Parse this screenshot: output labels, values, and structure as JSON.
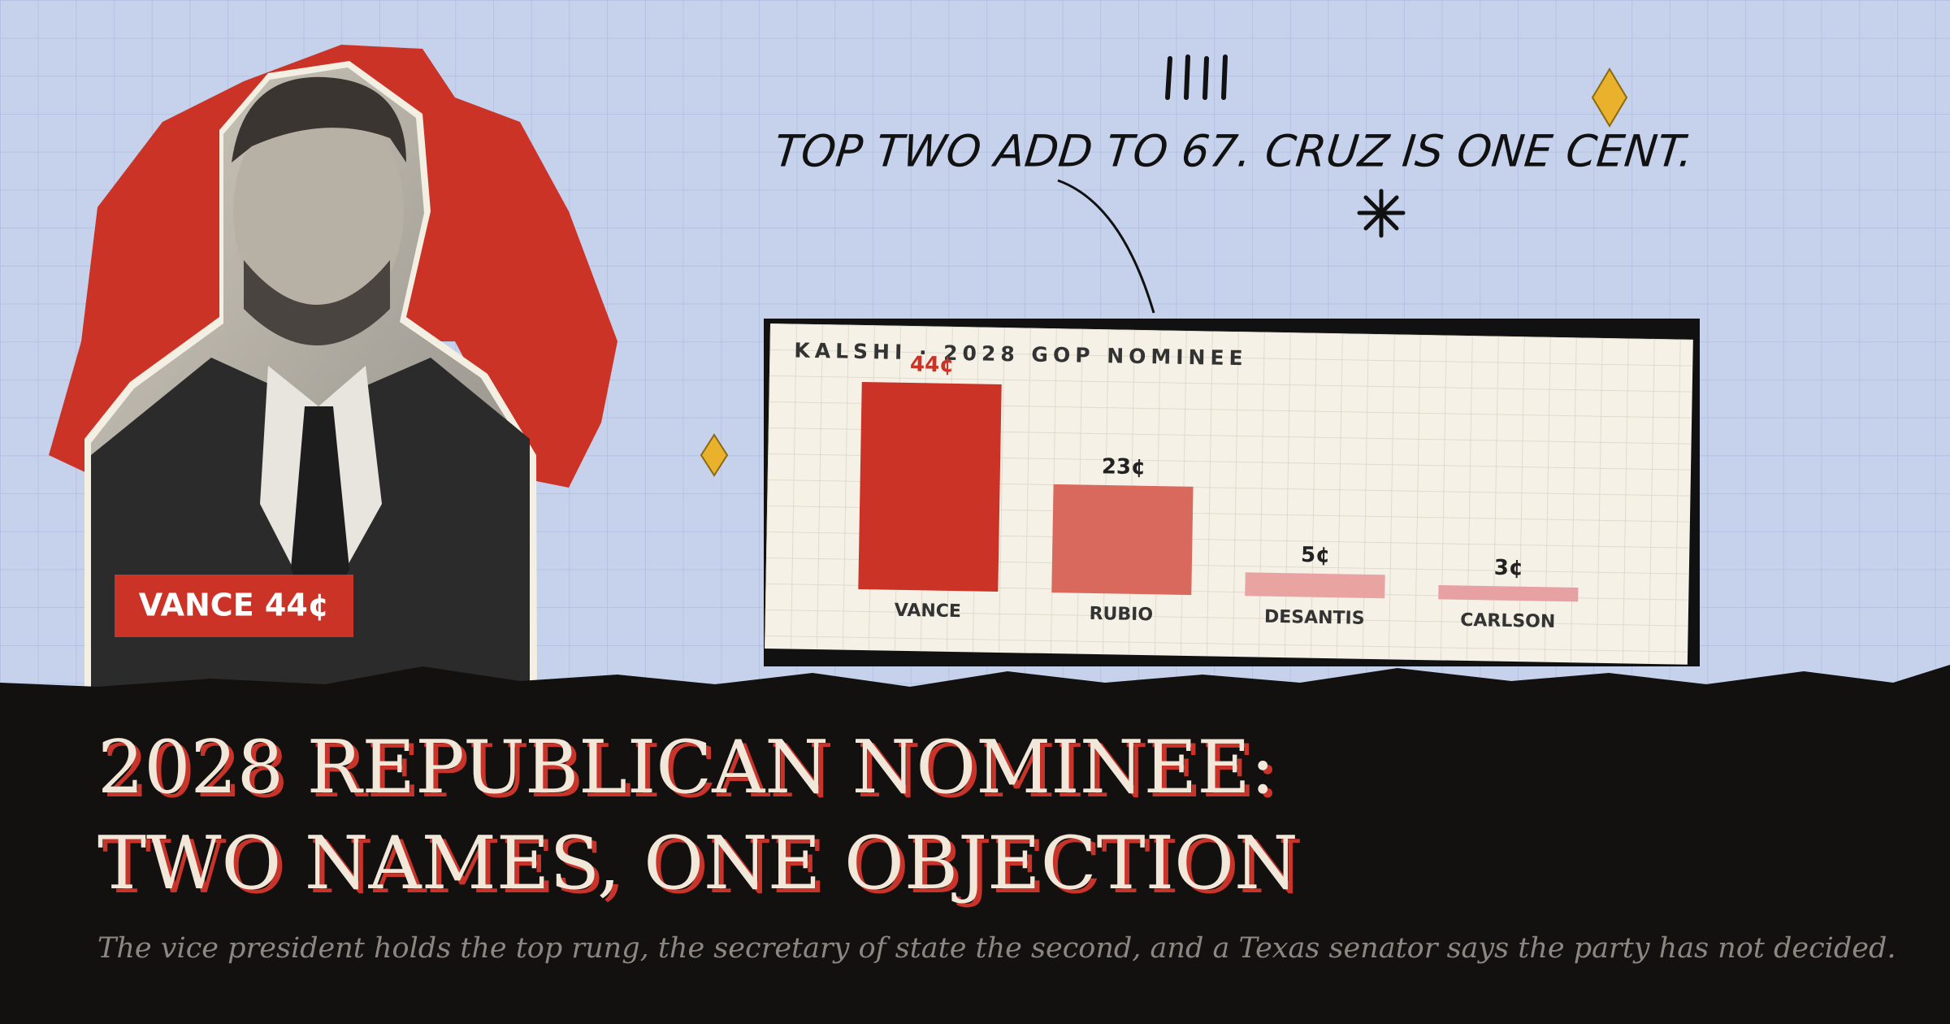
{
  "headline": {
    "line1": "2028 REPUBLICAN NOMINEE:",
    "line2": "TWO NAMES, ONE OBJECTION"
  },
  "subtitle": "The vice president holds the top rung, the secretary of state the second, and a Texas senator says the party has not decided.",
  "photo_label": "VANCE 44¢",
  "annotation": "TOP TWO ADD TO 67. CRUZ IS ONE CENT.",
  "chart_data": {
    "type": "bar",
    "title": "KALSHI · 2028 GOP NOMINEE",
    "categories": [
      "VANCE",
      "RUBIO",
      "DESANTIS",
      "CARLSON"
    ],
    "values": [
      44,
      23,
      5,
      3
    ],
    "value_labels": [
      "44¢",
      "23¢",
      "5¢",
      "3¢"
    ],
    "colors": [
      "#cb3327",
      "#d9685d",
      "#e9a4a2",
      "#e8a1a2"
    ]
  }
}
